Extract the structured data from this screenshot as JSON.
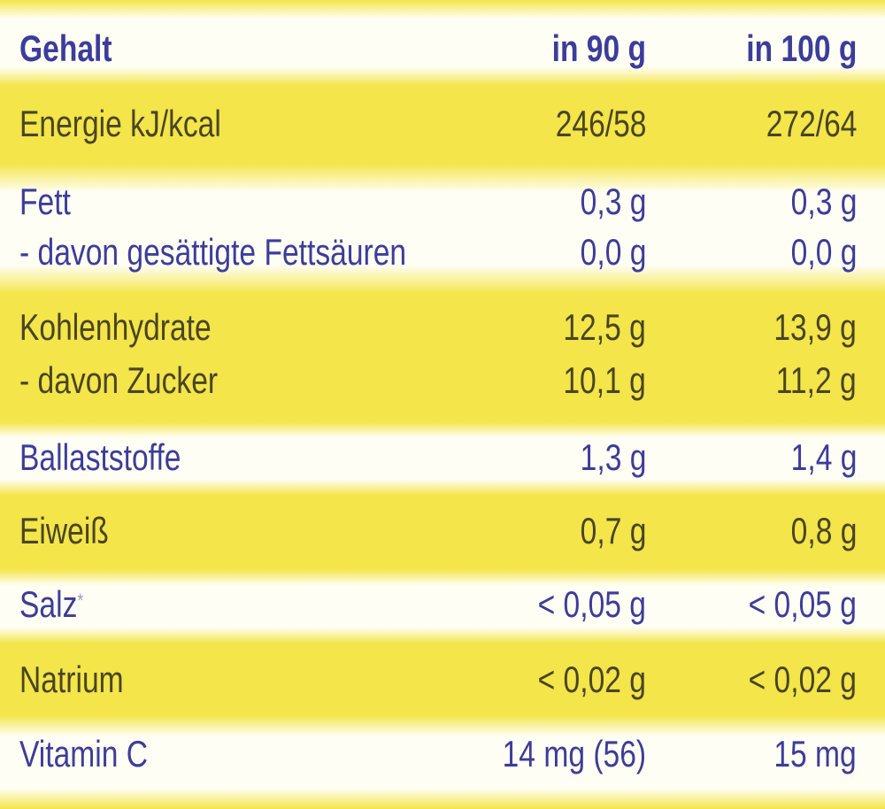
{
  "table": {
    "rows": [
      {
        "lines": [
          [
            "Gehalt",
            "in 90 g",
            "in 100 g"
          ]
        ]
      },
      {
        "lines": [
          [
            "Energie kJ/kcal",
            "246/58",
            "272/64"
          ]
        ]
      },
      {
        "lines": [
          [
            "Fett",
            "0,3 g",
            "0,3 g"
          ],
          [
            "- davon gesättigte Fettsäuren",
            "0,0 g",
            "0,0 g"
          ]
        ]
      },
      {
        "lines": [
          [
            "Kohlenhydrate",
            "12,5 g",
            "13,9 g"
          ],
          [
            "- davon Zucker",
            "10,1 g",
            "11,2 g"
          ]
        ]
      },
      {
        "lines": [
          [
            "Ballaststoffe",
            "1,3 g",
            "1,4 g"
          ]
        ]
      },
      {
        "lines": [
          [
            "Eiweiß",
            "0,7 g",
            "0,8 g"
          ]
        ]
      },
      {
        "lines": [
          [
            "Salz",
            "< 0,05 g",
            "< 0,05 g"
          ]
        ],
        "footnote_mark": "*"
      },
      {
        "lines": [
          [
            "Natrium",
            "< 0,02 g",
            "< 0,02 g"
          ]
        ]
      },
      {
        "lines": [
          [
            "Vitamin C",
            "14 mg (56)",
            "15 mg"
          ]
        ]
      }
    ]
  }
}
